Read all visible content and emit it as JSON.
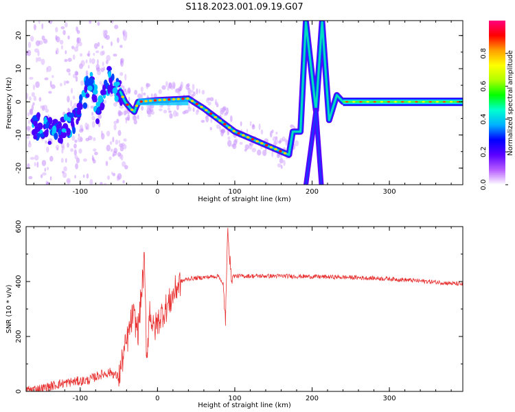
{
  "figure": {
    "title": "S118.2023.001.09.19.G07"
  },
  "chart_data": [
    {
      "type": "heatmap",
      "xlabel": "Height of straight line (km)",
      "ylabel": "Frequency (Hz)",
      "xlim": [
        -170,
        395
      ],
      "ylim": [
        -25,
        24.5
      ],
      "xticks": [
        -100,
        0,
        100,
        200,
        300
      ],
      "yticks": [
        -20,
        -10,
        0,
        10,
        20
      ],
      "colorbar": {
        "label": "Normalized spectral amplitude",
        "range": [
          0,
          1
        ],
        "ticks": [
          "0.0",
          "0.2",
          "0.4",
          "0.6",
          "0.8"
        ],
        "colors": [
          "#ffffff",
          "#b65cff",
          "#5a00ff",
          "#0000ff",
          "#00b0ff",
          "#00ffd0",
          "#00ff00",
          "#b0ff00",
          "#ffff00",
          "#ffa000",
          "#ff0000",
          "#ff0080"
        ]
      },
      "ridge": [
        {
          "x": -160,
          "y": -7
        },
        {
          "x": -140,
          "y": -9
        },
        {
          "x": -120,
          "y": -8
        },
        {
          "x": -105,
          "y": -5
        },
        {
          "x": -95,
          "y": 1
        },
        {
          "x": -85,
          "y": 8
        },
        {
          "x": -78,
          "y": -4
        },
        {
          "x": -70,
          "y": 3
        },
        {
          "x": -62,
          "y": 7
        },
        {
          "x": -48,
          "y": 3
        },
        {
          "x": -42,
          "y": 0
        },
        {
          "x": -35,
          "y": -2
        },
        {
          "x": -30,
          "y": -3
        },
        {
          "x": -25,
          "y": 0
        },
        {
          "x": 0,
          "y": 0.5
        },
        {
          "x": 40,
          "y": 1
        },
        {
          "x": 60,
          "y": -2
        },
        {
          "x": 100,
          "y": -9
        },
        {
          "x": 140,
          "y": -13
        },
        {
          "x": 170,
          "y": -16
        },
        {
          "x": 175,
          "y": -9
        },
        {
          "x": 185,
          "y": -9
        },
        {
          "x": 192,
          "y": 24
        },
        {
          "x": 205,
          "y": -2.5
        },
        {
          "x": 213,
          "y": 24
        },
        {
          "x": 222,
          "y": -5.5
        },
        {
          "x": 232,
          "y": 2
        },
        {
          "x": 240,
          "y": 0
        },
        {
          "x": 300,
          "y": 0
        },
        {
          "x": 395,
          "y": 0
        }
      ],
      "branch_lower": [
        {
          "x": 192,
          "y": -25
        },
        {
          "x": 205,
          "y": -2.5
        },
        {
          "x": 212,
          "y": -25
        }
      ]
    },
    {
      "type": "line",
      "xlabel": "Height of straight line (km)",
      "ylabel": "SNR (10 * v/v)",
      "xlim": [
        -170,
        395
      ],
      "ylim": [
        0,
        600
      ],
      "xticks": [
        -100,
        0,
        100,
        200,
        300
      ],
      "yticks": [
        0,
        200,
        400,
        600
      ],
      "color": "#e83030",
      "series": [
        {
          "values": [
            {
              "x": -170,
              "y": 5
            },
            {
              "x": -150,
              "y": 10
            },
            {
              "x": -130,
              "y": 25
            },
            {
              "x": -110,
              "y": 35
            },
            {
              "x": -90,
              "y": 40
            },
            {
              "x": -75,
              "y": 60
            },
            {
              "x": -60,
              "y": 70
            },
            {
              "x": -50,
              "y": 50
            },
            {
              "x": -45,
              "y": 120
            },
            {
              "x": -38,
              "y": 200
            },
            {
              "x": -32,
              "y": 280
            },
            {
              "x": -25,
              "y": 220
            },
            {
              "x": -20,
              "y": 380
            },
            {
              "x": -17,
              "y": 470
            },
            {
              "x": -14,
              "y": 120
            },
            {
              "x": -10,
              "y": 300
            },
            {
              "x": -5,
              "y": 220
            },
            {
              "x": 0,
              "y": 250
            },
            {
              "x": 5,
              "y": 280
            },
            {
              "x": 10,
              "y": 300
            },
            {
              "x": 15,
              "y": 320
            },
            {
              "x": 20,
              "y": 350
            },
            {
              "x": 25,
              "y": 380
            },
            {
              "x": 30,
              "y": 400
            },
            {
              "x": 40,
              "y": 410
            },
            {
              "x": 60,
              "y": 415
            },
            {
              "x": 80,
              "y": 420
            },
            {
              "x": 85,
              "y": 380
            },
            {
              "x": 88,
              "y": 260
            },
            {
              "x": 91,
              "y": 600
            },
            {
              "x": 95,
              "y": 420
            },
            {
              "x": 120,
              "y": 420
            },
            {
              "x": 160,
              "y": 420
            },
            {
              "x": 200,
              "y": 418
            },
            {
              "x": 250,
              "y": 415
            },
            {
              "x": 300,
              "y": 410
            },
            {
              "x": 350,
              "y": 400
            },
            {
              "x": 395,
              "y": 390
            }
          ]
        }
      ]
    }
  ]
}
